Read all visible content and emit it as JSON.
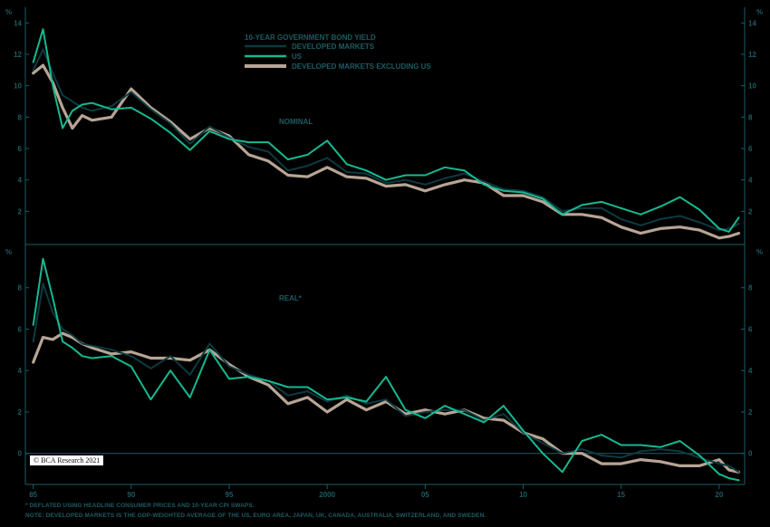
{
  "copyright": "© BCA Research 2021",
  "footnotes": [
    "* DEFLATED USING HEADLINE CONSUMER PRICES AND 10-YEAR CPI SWAPS.",
    "NOTE: DEVELOPED MARKETS IS THE GDP-WEIGHTED AVERAGE OF THE US, EURO AREA, JAPAN, UK, CANADA, AUSTRALIA, SWITZERLAND, AND SWEDEN."
  ],
  "colors": {
    "developed": "#0c3a40",
    "us": "#17b890",
    "dm_ex_us": "#b7a595",
    "axis": "#1e5c63"
  },
  "chart_data": {
    "type": "line",
    "title": "10-YEAR GOVERNMENT BOND YIELD",
    "legend_position": "top-center",
    "grid": false,
    "x_tick_labels": [
      "85",
      "90",
      "95",
      "2000",
      "05",
      "10",
      "15",
      "20"
    ],
    "x_ticks": [
      1985,
      1990,
      1995,
      2000,
      2005,
      2010,
      2015,
      2020
    ],
    "xlim": [
      1984.6,
      2021.3
    ],
    "series_names": [
      "DEVELOPED MARKETS",
      "US",
      "DEVELOPED MARKETS EXCLUDING US"
    ],
    "panels": [
      {
        "label": "NOMINAL",
        "ylabel": "%",
        "ylim": [
          0,
          15
        ],
        "y_ticks": [
          2,
          4,
          6,
          8,
          10,
          12,
          14
        ],
        "x": [
          1985.0,
          1985.5,
          1986.0,
          1986.5,
          1987.0,
          1987.5,
          1988.0,
          1989.0,
          1990.0,
          1991.0,
          1992.0,
          1993.0,
          1994.0,
          1995.0,
          1996.0,
          1997.0,
          1998.0,
          1999.0,
          2000.0,
          2001.0,
          2002.0,
          2003.0,
          2004.0,
          2005.0,
          2006.0,
          2007.0,
          2008.0,
          2009.0,
          2010.0,
          2011.0,
          2012.0,
          2013.0,
          2014.0,
          2015.0,
          2016.0,
          2017.0,
          2018.0,
          2019.0,
          2020.0,
          2020.5,
          2021.0
        ],
        "series": [
          {
            "name": "DEVELOPED MARKETS",
            "values": [
              11.0,
              12.3,
              10.8,
              9.4,
              9.0,
              8.6,
              8.4,
              8.7,
              9.6,
              8.5,
              7.6,
              6.3,
              7.4,
              6.7,
              6.1,
              5.8,
              4.6,
              4.9,
              5.4,
              4.5,
              4.4,
              3.8,
              4.0,
              3.7,
              4.1,
              4.4,
              3.9,
              3.4,
              3.3,
              2.9,
              2.0,
              2.2,
              2.2,
              1.5,
              1.1,
              1.5,
              1.7,
              1.3,
              0.8,
              0.9,
              1.2
            ]
          },
          {
            "name": "US",
            "values": [
              11.5,
              13.6,
              10.0,
              7.3,
              8.4,
              8.8,
              8.9,
              8.5,
              8.6,
              7.9,
              7.0,
              5.9,
              7.1,
              6.6,
              6.4,
              6.4,
              5.3,
              5.6,
              6.5,
              5.0,
              4.6,
              4.0,
              4.3,
              4.3,
              4.8,
              4.6,
              3.7,
              3.3,
              3.2,
              2.8,
              1.8,
              2.4,
              2.6,
              2.2,
              1.8,
              2.3,
              2.9,
              2.1,
              0.9,
              0.7,
              1.6
            ]
          },
          {
            "name": "DEVELOPED MARKETS EXCLUDING US",
            "values": [
              10.8,
              11.3,
              10.2,
              8.6,
              7.3,
              8.1,
              7.8,
              8.0,
              9.8,
              8.6,
              7.7,
              6.6,
              7.3,
              6.8,
              5.6,
              5.2,
              4.3,
              4.2,
              4.8,
              4.2,
              4.1,
              3.6,
              3.7,
              3.3,
              3.7,
              4.0,
              3.8,
              3.0,
              3.0,
              2.6,
              1.8,
              1.8,
              1.6,
              1.0,
              0.6,
              0.9,
              1.0,
              0.8,
              0.3,
              0.4,
              0.6
            ]
          }
        ]
      },
      {
        "label": "REAL*",
        "ylabel": "%",
        "ylim": [
          -1.5,
          10
        ],
        "y_ticks": [
          0,
          2,
          4,
          6,
          8
        ],
        "x": [
          1985.0,
          1985.5,
          1986.0,
          1986.5,
          1987.0,
          1987.5,
          1988.0,
          1989.0,
          1990.0,
          1991.0,
          1992.0,
          1993.0,
          1994.0,
          1995.0,
          1996.0,
          1997.0,
          1998.0,
          1999.0,
          2000.0,
          2001.0,
          2002.0,
          2003.0,
          2004.0,
          2005.0,
          2006.0,
          2007.0,
          2008.0,
          2009.0,
          2010.0,
          2011.0,
          2012.0,
          2013.0,
          2014.0,
          2015.0,
          2016.0,
          2017.0,
          2018.0,
          2019.0,
          2020.0,
          2020.5,
          2021.0
        ],
        "series": [
          {
            "name": "DEVELOPED MARKETS",
            "values": [
              5.4,
              8.2,
              6.8,
              6.0,
              5.7,
              5.3,
              5.2,
              5.0,
              4.7,
              4.1,
              4.7,
              3.8,
              5.3,
              4.2,
              3.8,
              3.5,
              2.8,
              3.0,
              2.5,
              2.8,
              2.4,
              2.6,
              1.8,
              2.0,
              2.1,
              2.1,
              1.6,
              1.9,
              1.0,
              0.5,
              0.0,
              0.2,
              -0.1,
              -0.2,
              0.1,
              0.2,
              0.1,
              -0.2,
              -0.5,
              -0.6,
              -0.9
            ]
          },
          {
            "name": "US",
            "values": [
              6.2,
              9.4,
              7.5,
              5.4,
              5.1,
              4.7,
              4.6,
              4.7,
              4.2,
              2.6,
              4.0,
              2.7,
              5.0,
              3.6,
              3.7,
              3.5,
              3.2,
              3.2,
              2.6,
              2.7,
              2.5,
              3.7,
              2.1,
              1.7,
              2.3,
              1.9,
              1.5,
              2.3,
              1.1,
              0.0,
              -0.9,
              0.6,
              0.9,
              0.4,
              0.4,
              0.3,
              0.6,
              -0.1,
              -1.0,
              -1.2,
              -1.3
            ]
          },
          {
            "name": "DEVELOPED MARKETS EXCLUDING US",
            "values": [
              4.4,
              5.6,
              5.5,
              5.8,
              5.6,
              5.3,
              5.1,
              4.8,
              4.9,
              4.6,
              4.6,
              4.5,
              5.0,
              4.3,
              3.7,
              3.3,
              2.4,
              2.7,
              2.0,
              2.6,
              2.1,
              2.5,
              1.9,
              2.1,
              1.9,
              2.1,
              1.7,
              1.6,
              1.0,
              0.7,
              0.0,
              0.0,
              -0.5,
              -0.5,
              -0.3,
              -0.4,
              -0.6,
              -0.6,
              -0.3,
              -0.8,
              -0.9
            ]
          }
        ]
      }
    ]
  }
}
